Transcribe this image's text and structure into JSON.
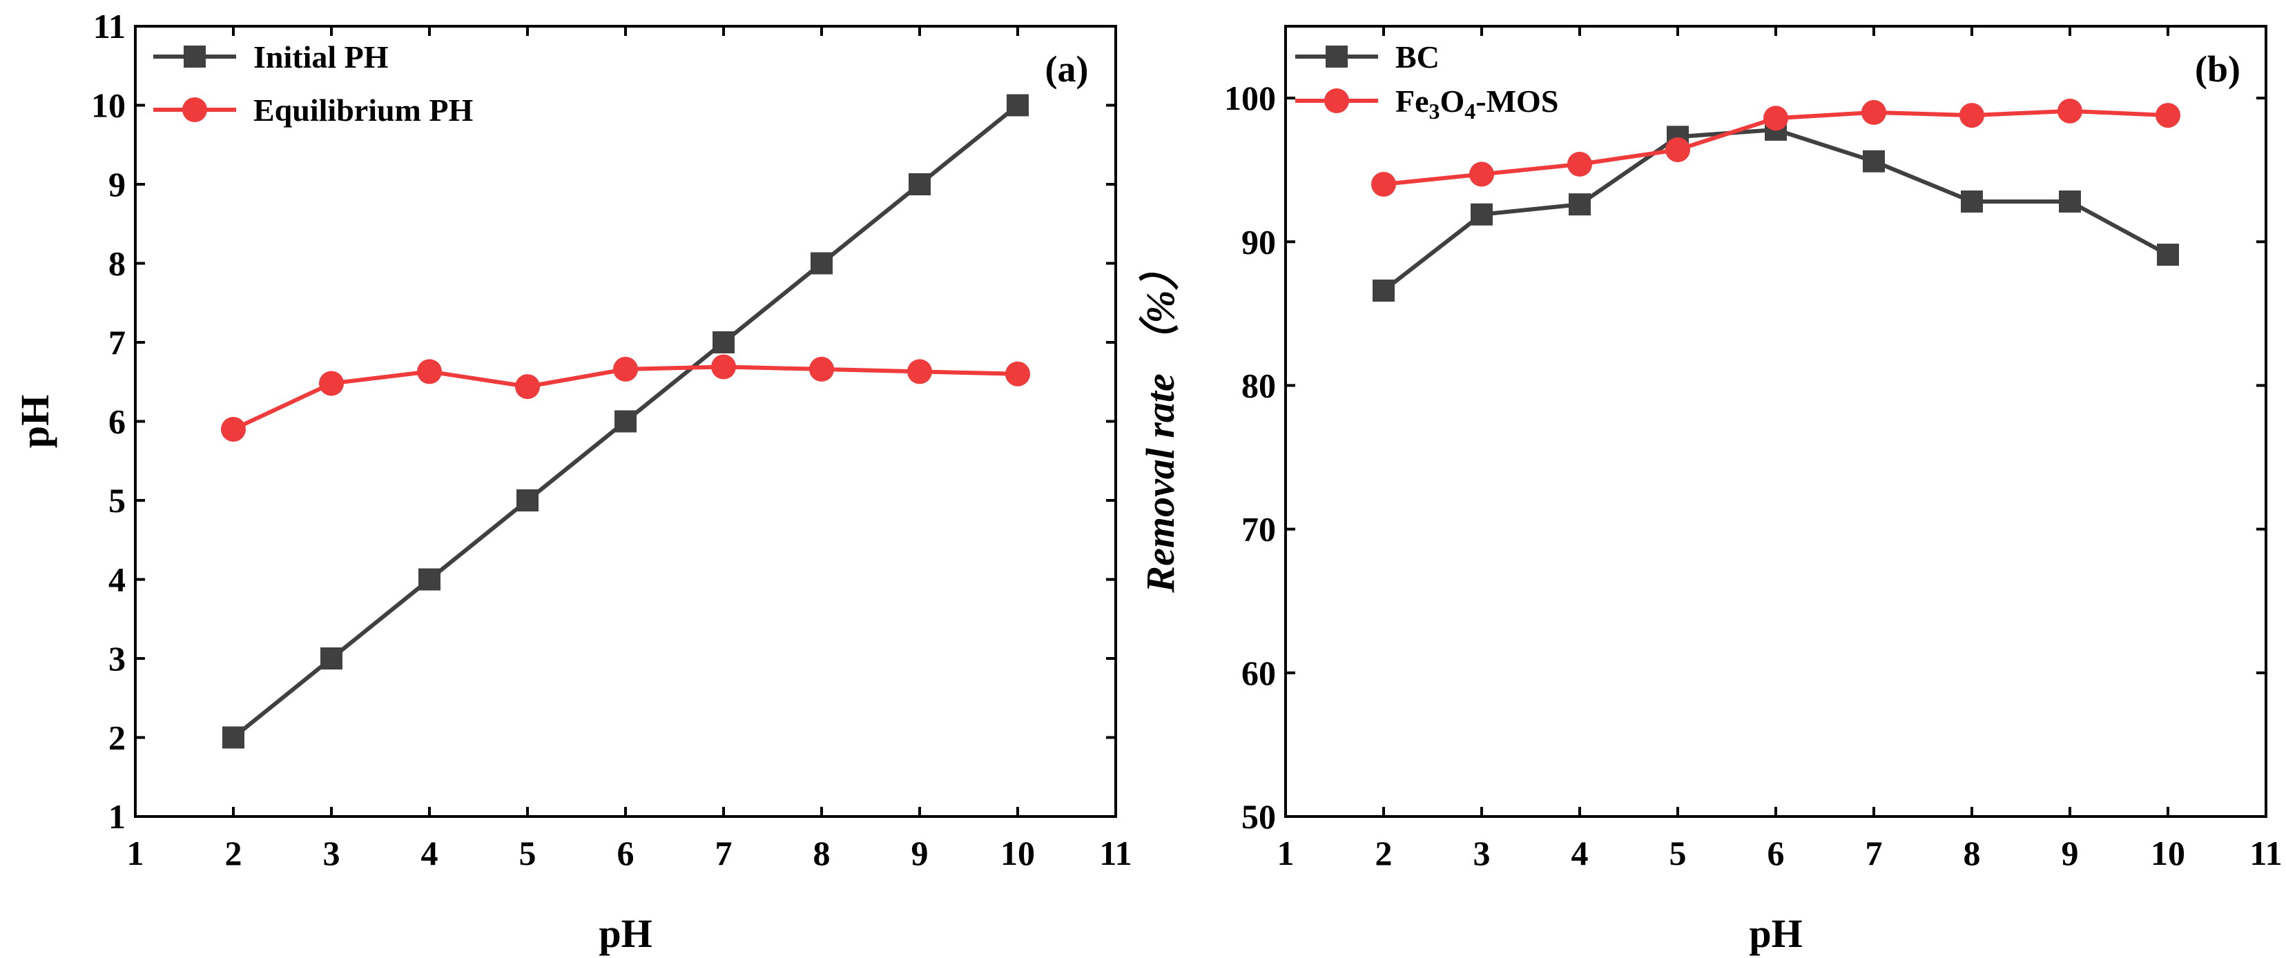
{
  "chart_data": [
    {
      "id": "a",
      "type": "line",
      "panel_label": "(a)",
      "title": "",
      "xlabel": "pH",
      "ylabel": "pH",
      "xlim": [
        1,
        11
      ],
      "ylim": [
        1,
        11
      ],
      "xticks": [
        1,
        2,
        3,
        4,
        5,
        6,
        7,
        8,
        9,
        10,
        11
      ],
      "yticks": [
        1,
        2,
        3,
        4,
        5,
        6,
        7,
        8,
        9,
        10,
        11
      ],
      "grid": false,
      "legend_position": "top-left",
      "series": [
        {
          "name": "Initial PH",
          "color": "#404040",
          "marker": "square",
          "x": [
            2,
            3,
            4,
            5,
            6,
            7,
            8,
            9,
            10
          ],
          "y": [
            2,
            3,
            4,
            5,
            6,
            7,
            8,
            9,
            10
          ]
        },
        {
          "name": "Equilibrium PH",
          "color": "#ef3b3b",
          "marker": "circle",
          "x": [
            2,
            3,
            4,
            5,
            6,
            7,
            8,
            9,
            10
          ],
          "y": [
            5.9,
            6.48,
            6.63,
            6.44,
            6.66,
            6.69,
            6.66,
            6.63,
            6.6
          ]
        }
      ]
    },
    {
      "id": "b",
      "type": "line",
      "panel_label": "(b)",
      "title": "",
      "xlabel": "pH",
      "ylabel": "Removal rate （%）",
      "xlim": [
        1,
        11
      ],
      "ylim": [
        50,
        105
      ],
      "xticks": [
        1,
        2,
        3,
        4,
        5,
        6,
        7,
        8,
        9,
        10,
        11
      ],
      "yticks": [
        50,
        60,
        70,
        80,
        90,
        100
      ],
      "grid": false,
      "legend_position": "top-left",
      "series": [
        {
          "name": "BC",
          "color": "#404040",
          "marker": "square",
          "x": [
            2,
            3,
            4,
            5,
            6,
            7,
            8,
            9,
            10
          ],
          "y": [
            86.6,
            91.9,
            92.6,
            97.3,
            97.8,
            95.6,
            92.8,
            92.8,
            89.1
          ]
        },
        {
          "name": "Fe3O4-MOS",
          "color": "#ef3b3b",
          "marker": "circle",
          "x": [
            2,
            3,
            4,
            5,
            6,
            7,
            8,
            9,
            10
          ],
          "y": [
            94.0,
            94.7,
            95.4,
            96.4,
            98.6,
            99.0,
            98.8,
            99.1,
            98.8
          ]
        }
      ]
    }
  ]
}
